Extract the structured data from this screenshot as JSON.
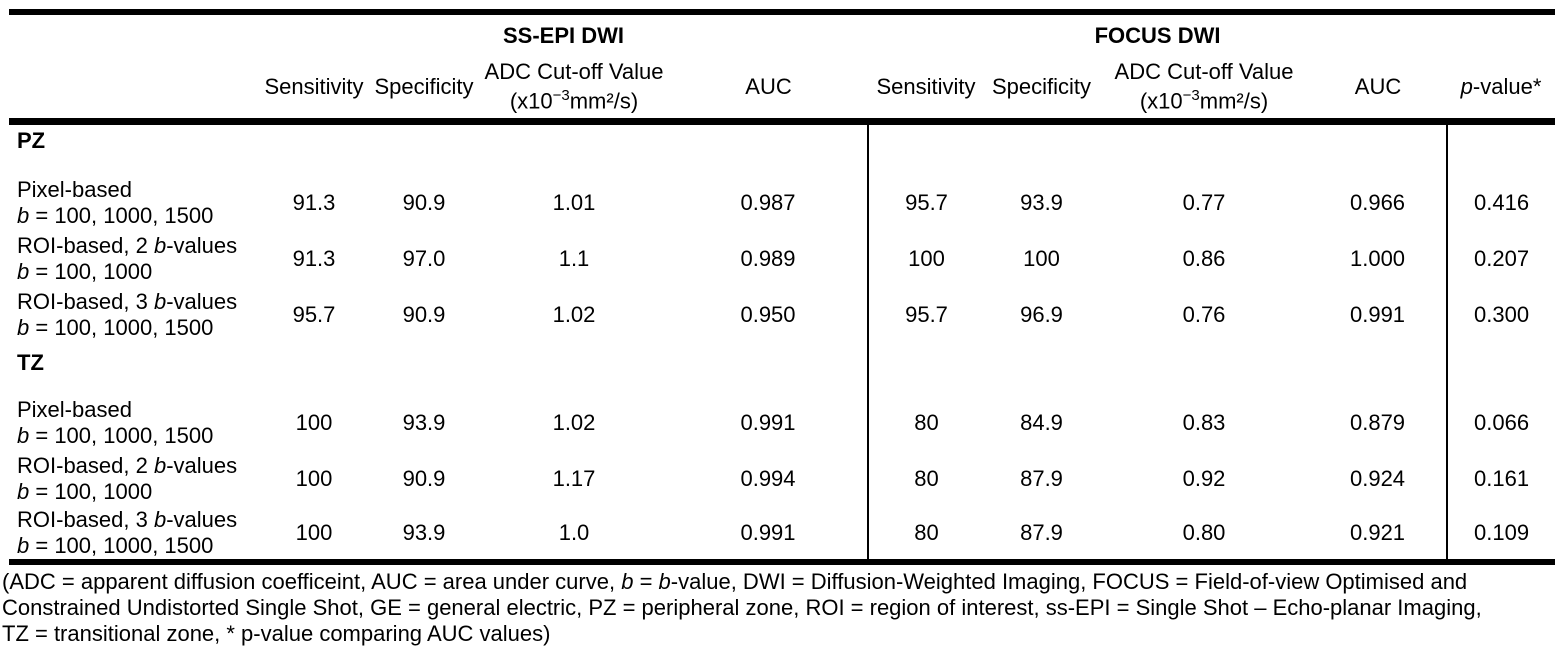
{
  "table": {
    "group_headers": {
      "ss_epi": "SS-EPI DWI",
      "focus": "FOCUS DWI"
    },
    "col_headers": {
      "sensitivity": "Sensitivity",
      "specificity": "Specificity",
      "adc_line1": "ADC Cut-off Value",
      "adc_pre": "(x10",
      "adc_sup": "−3",
      "adc_post": "mm²/s)",
      "auc": "AUC",
      "p_italic": "p",
      "p_rest": "-value*"
    },
    "sections": [
      {
        "name": "PZ",
        "rows": [
          {
            "l1_pre": "Pixel-based",
            "l1_b": "",
            "l1_post": "",
            "l2_b": "b",
            "l2_rest": " = 100, 1000, 1500",
            "ss_epi": {
              "sens": "91.3",
              "spec": "90.9",
              "adc": "1.01",
              "auc": "0.987"
            },
            "focus": {
              "sens": "95.7",
              "spec": "93.9",
              "adc": "0.77",
              "auc": "0.966"
            },
            "p_value": "0.416"
          },
          {
            "l1_pre": "ROI-based, 2 ",
            "l1_b": "b",
            "l1_post": "-values",
            "l2_b": "b",
            "l2_rest": " = 100, 1000",
            "ss_epi": {
              "sens": "91.3",
              "spec": "97.0",
              "adc": "1.1",
              "auc": "0.989"
            },
            "focus": {
              "sens": "100",
              "spec": "100",
              "adc": "0.86",
              "auc": "1.000"
            },
            "p_value": "0.207"
          },
          {
            "l1_pre": "ROI-based, 3 ",
            "l1_b": "b",
            "l1_post": "-values",
            "l2_b": "b",
            "l2_rest": " = 100, 1000, 1500",
            "ss_epi": {
              "sens": "95.7",
              "spec": "90.9",
              "adc": "1.02",
              "auc": "0.950"
            },
            "focus": {
              "sens": "95.7",
              "spec": "96.9",
              "adc": "0.76",
              "auc": "0.991"
            },
            "p_value": "0.300"
          }
        ]
      },
      {
        "name": "TZ",
        "rows": [
          {
            "l1_pre": "Pixel-based",
            "l1_b": "",
            "l1_post": "",
            "l2_b": "b",
            "l2_rest": " = 100, 1000, 1500",
            "ss_epi": {
              "sens": "100",
              "spec": "93.9",
              "adc": "1.02",
              "auc": "0.991"
            },
            "focus": {
              "sens": "80",
              "spec": "84.9",
              "adc": "0.83",
              "auc": "0.879"
            },
            "p_value": "0.066"
          },
          {
            "l1_pre": "ROI-based, 2 ",
            "l1_b": "b",
            "l1_post": "-values",
            "l2_b": "b",
            "l2_rest": " = 100, 1000",
            "ss_epi": {
              "sens": "100",
              "spec": "90.9",
              "adc": "1.17",
              "auc": "0.994"
            },
            "focus": {
              "sens": "80",
              "spec": "87.9",
              "adc": "0.92",
              "auc": "0.924"
            },
            "p_value": "0.161"
          },
          {
            "l1_pre": "ROI-based, 3 ",
            "l1_b": "b",
            "l1_post": "-values",
            "l2_b": "b",
            "l2_rest": " = 100, 1000, 1500",
            "ss_epi": {
              "sens": "100",
              "spec": "93.9",
              "adc": "1.0",
              "auc": "0.991"
            },
            "focus": {
              "sens": "80",
              "spec": "87.9",
              "adc": "0.80",
              "auc": "0.921"
            },
            "p_value": "0.109"
          }
        ]
      }
    ]
  },
  "footnote": {
    "line1": [
      {
        "t": "(ADC = apparent diffusion coefficeint, AUC = area under curve, "
      },
      {
        "t": "b"
      },
      {
        "t": " = "
      },
      {
        "t": "b"
      },
      {
        "t": "-value, DWI = Diffusion-Weighted Imaging, FOCUS = Field-of-view Optimised and"
      }
    ],
    "line2": "Constrained Undistorted Single Shot, GE = general electric, PZ = peripheral zone, ROI = region of interest, ss-EPI = Single Shot – Echo-planar Imaging,",
    "line3": "TZ = transitional zone, * p-value comparing AUC values)"
  }
}
